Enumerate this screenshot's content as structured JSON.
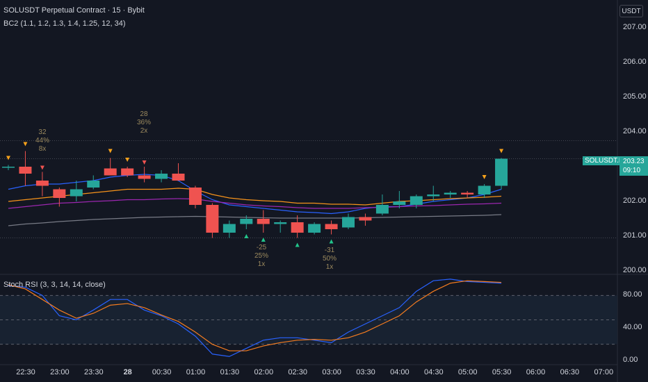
{
  "header": {
    "symbol_title": "SOLUSDT Perpetual Contract · 15 · Bybit",
    "indicator_title": "BC2 (1.1, 1.2, 1.3, 1.4, 1.25, 12, 34)",
    "currency_button": "USDT"
  },
  "price_axis": {
    "labels": [
      "207.00",
      "206.00",
      "205.00",
      "204.00",
      "202.00",
      "201.00",
      "200.00"
    ],
    "current_symbol": "SOLUSDT.P",
    "current_price": "203.23",
    "countdown": "09:10"
  },
  "time_axis": {
    "labels": [
      "22:30",
      "23:00",
      "23:30",
      "28",
      "00:30",
      "01:00",
      "01:30",
      "02:00",
      "02:30",
      "03:00",
      "03:30",
      "04:00",
      "04:30",
      "05:00",
      "05:30",
      "06:00",
      "06:30",
      "07:00"
    ]
  },
  "annotations": [
    {
      "lines": [
        "32",
        "44%",
        "8x"
      ]
    },
    {
      "lines": [
        "28",
        "36%",
        "2x"
      ]
    },
    {
      "lines": [
        "-25",
        "25%",
        "1x"
      ]
    },
    {
      "lines": [
        "-31",
        "50%",
        "1x"
      ]
    }
  ],
  "stoch": {
    "title": "Stoch RSI (3, 3, 14, 14, close)",
    "labels": [
      "80.00",
      "40.00",
      "0.00"
    ]
  },
  "colors": {
    "background": "#131722",
    "bull": "#26a69a",
    "bear": "#ef5350",
    "signal_down": "#f7a21b",
    "signal_down_alt": "#ef5350",
    "signal_up": "#22c58b",
    "ema_blue": "#2962ff",
    "ema_orange": "#f7931a",
    "ema_purple": "#9c27b0",
    "ema_gray": "#787b86",
    "stoch_k": "#2962ff",
    "stoch_d": "#f57c1f"
  },
  "chart_data": {
    "type": "candlestick",
    "interval": "15",
    "candles": [
      {
        "t": "22:30",
        "o": 203.0,
        "h": 203.05,
        "l": 202.9,
        "c": 203.0
      },
      {
        "t": "22:45",
        "o": 203.0,
        "h": 203.45,
        "l": 202.45,
        "c": 202.8
      },
      {
        "t": "23:00",
        "o": 202.6,
        "h": 202.85,
        "l": 202.15,
        "c": 202.45
      },
      {
        "t": "23:15",
        "o": 202.35,
        "h": 202.4,
        "l": 201.85,
        "c": 202.1
      },
      {
        "t": "23:30",
        "o": 202.15,
        "h": 202.6,
        "l": 202.0,
        "c": 202.35
      },
      {
        "t": "23:45",
        "o": 202.4,
        "h": 202.75,
        "l": 202.35,
        "c": 202.6
      },
      {
        "t": "00:00",
        "o": 202.95,
        "h": 203.25,
        "l": 202.8,
        "c": 202.75
      },
      {
        "t": "00:15",
        "o": 202.95,
        "h": 203.0,
        "l": 202.7,
        "c": 202.75
      },
      {
        "t": "00:30",
        "o": 202.75,
        "h": 203.0,
        "l": 202.55,
        "c": 202.65
      },
      {
        "t": "00:45",
        "o": 202.65,
        "h": 202.9,
        "l": 202.55,
        "c": 202.8
      },
      {
        "t": "01:00",
        "o": 202.8,
        "h": 203.1,
        "l": 202.6,
        "c": 202.6
      },
      {
        "t": "01:15",
        "o": 202.4,
        "h": 202.45,
        "l": 201.8,
        "c": 201.9
      },
      {
        "t": "01:30",
        "o": 201.9,
        "h": 201.95,
        "l": 200.95,
        "c": 201.1
      },
      {
        "t": "01:45",
        "o": 201.1,
        "h": 201.45,
        "l": 200.95,
        "c": 201.35
      },
      {
        "t": "02:00",
        "o": 201.35,
        "h": 201.6,
        "l": 201.2,
        "c": 201.5
      },
      {
        "t": "02:15",
        "o": 201.5,
        "h": 201.75,
        "l": 201.1,
        "c": 201.35
      },
      {
        "t": "02:30",
        "o": 201.35,
        "h": 201.45,
        "l": 201.1,
        "c": 201.4
      },
      {
        "t": "02:45",
        "o": 201.4,
        "h": 201.6,
        "l": 200.95,
        "c": 201.1
      },
      {
        "t": "03:00",
        "o": 201.1,
        "h": 201.4,
        "l": 201.05,
        "c": 201.35
      },
      {
        "t": "03:15",
        "o": 201.35,
        "h": 201.45,
        "l": 201.05,
        "c": 201.2
      },
      {
        "t": "03:30",
        "o": 201.25,
        "h": 201.65,
        "l": 201.2,
        "c": 201.55
      },
      {
        "t": "03:45",
        "o": 201.55,
        "h": 201.65,
        "l": 201.3,
        "c": 201.45
      },
      {
        "t": "04:00",
        "o": 201.65,
        "h": 202.2,
        "l": 201.6,
        "c": 201.9
      },
      {
        "t": "04:15",
        "o": 201.9,
        "h": 202.3,
        "l": 201.8,
        "c": 202.0
      },
      {
        "t": "04:30",
        "o": 201.9,
        "h": 202.2,
        "l": 201.8,
        "c": 202.15
      },
      {
        "t": "04:45",
        "o": 202.15,
        "h": 202.45,
        "l": 202.0,
        "c": 202.2
      },
      {
        "t": "05:00",
        "o": 202.2,
        "h": 202.3,
        "l": 202.1,
        "c": 202.25
      },
      {
        "t": "05:15",
        "o": 202.25,
        "h": 202.3,
        "l": 202.1,
        "c": 202.2
      },
      {
        "t": "05:30",
        "o": 202.2,
        "h": 202.5,
        "l": 202.1,
        "c": 202.45
      },
      {
        "t": "05:45",
        "o": 202.45,
        "h": 203.25,
        "l": 202.35,
        "c": 203.23
      }
    ],
    "ylim": [
      199.9,
      207.6
    ],
    "series": [
      {
        "values": [
          202.35,
          202.45,
          202.5,
          202.5,
          202.55,
          202.6,
          202.7,
          202.75,
          202.78,
          202.75,
          202.6,
          202.3,
          202.05,
          201.9,
          201.85,
          201.8,
          201.75,
          201.7,
          201.68,
          201.65,
          201.7,
          201.8,
          201.85,
          201.85,
          201.92,
          202.0,
          202.05,
          202.1,
          202.2,
          202.35
        ]
      },
      {
        "values": [
          202.0,
          202.05,
          202.1,
          202.15,
          202.2,
          202.25,
          202.3,
          202.35,
          202.35,
          202.35,
          202.38,
          202.35,
          202.2,
          202.1,
          202.05,
          202.02,
          202.0,
          201.95,
          201.95,
          201.92,
          201.92,
          201.9,
          201.95,
          202.0,
          202.02,
          202.05,
          202.08,
          202.1,
          202.12,
          202.15
        ]
      },
      {
        "values": [
          201.8,
          201.85,
          201.9,
          201.95,
          201.97,
          202.0,
          202.02,
          202.05,
          202.05,
          202.07,
          202.08,
          202.07,
          202.0,
          201.95,
          201.9,
          201.87,
          201.85,
          201.82,
          201.8,
          201.8,
          201.8,
          201.82,
          201.83,
          201.85,
          201.87,
          201.88,
          201.9,
          201.92,
          201.93,
          201.95
        ]
      },
      {
        "values": [
          201.3,
          201.35,
          201.38,
          201.42,
          201.45,
          201.48,
          201.5,
          201.52,
          201.54,
          201.55,
          201.56,
          201.57,
          201.56,
          201.55,
          201.54,
          201.53,
          201.52,
          201.52,
          201.52,
          201.52,
          201.52,
          201.53,
          201.54,
          201.55,
          201.56,
          201.57,
          201.58,
          201.59,
          201.6,
          201.62
        ]
      }
    ],
    "stoch_k": [
      92,
      90,
      80,
      55,
      50,
      62,
      75,
      75,
      62,
      55,
      45,
      30,
      8,
      5,
      15,
      25,
      28,
      28,
      25,
      22,
      35,
      45,
      55,
      65,
      85,
      98,
      100,
      97,
      96,
      95
    ],
    "stoch_d": [
      93,
      88,
      75,
      62,
      52,
      58,
      68,
      70,
      65,
      56,
      48,
      35,
      20,
      12,
      12,
      18,
      22,
      25,
      26,
      25,
      28,
      35,
      45,
      55,
      72,
      85,
      95,
      98,
      97,
      96
    ],
    "stoch_ylim": [
      -5,
      105
    ]
  }
}
